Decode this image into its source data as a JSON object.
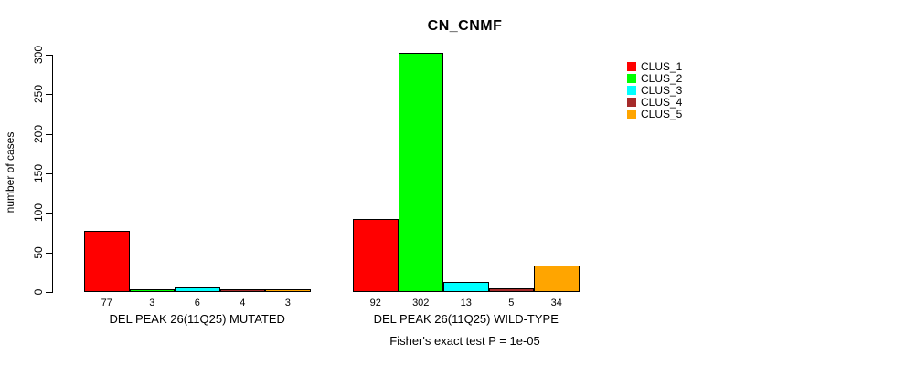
{
  "chart_data": {
    "type": "bar",
    "title": "CN_CNMF",
    "xlabel": "",
    "ylabel": "number of cases",
    "ylim": [
      0,
      300
    ],
    "yticks": [
      0,
      50,
      100,
      150,
      200,
      250,
      300
    ],
    "grid": false,
    "legend_position": "right",
    "categories": [
      "DEL PEAK 26(11Q25) MUTATED",
      "DEL PEAK 26(11Q25) WILD-TYPE"
    ],
    "series": [
      {
        "name": "CLUS_1",
        "color": "#FF0000",
        "values": [
          77,
          92
        ]
      },
      {
        "name": "CLUS_2",
        "color": "#00FF00",
        "values": [
          3,
          302
        ]
      },
      {
        "name": "CLUS_3",
        "color": "#00FFFF",
        "values": [
          6,
          13
        ]
      },
      {
        "name": "CLUS_4",
        "color": "#A52A2A",
        "values": [
          4,
          5
        ]
      },
      {
        "name": "CLUS_5",
        "color": "#FFA500",
        "values": [
          3,
          34
        ]
      }
    ],
    "bar_value_labels": [
      [
        77,
        3,
        6,
        4,
        3
      ],
      [
        92,
        302,
        13,
        5,
        34
      ]
    ],
    "annotation": "Fisher's exact test P = 1e-05"
  },
  "colors": {
    "background": "#FFFFFF",
    "axis": "#000000",
    "bar_border": "#000000"
  }
}
